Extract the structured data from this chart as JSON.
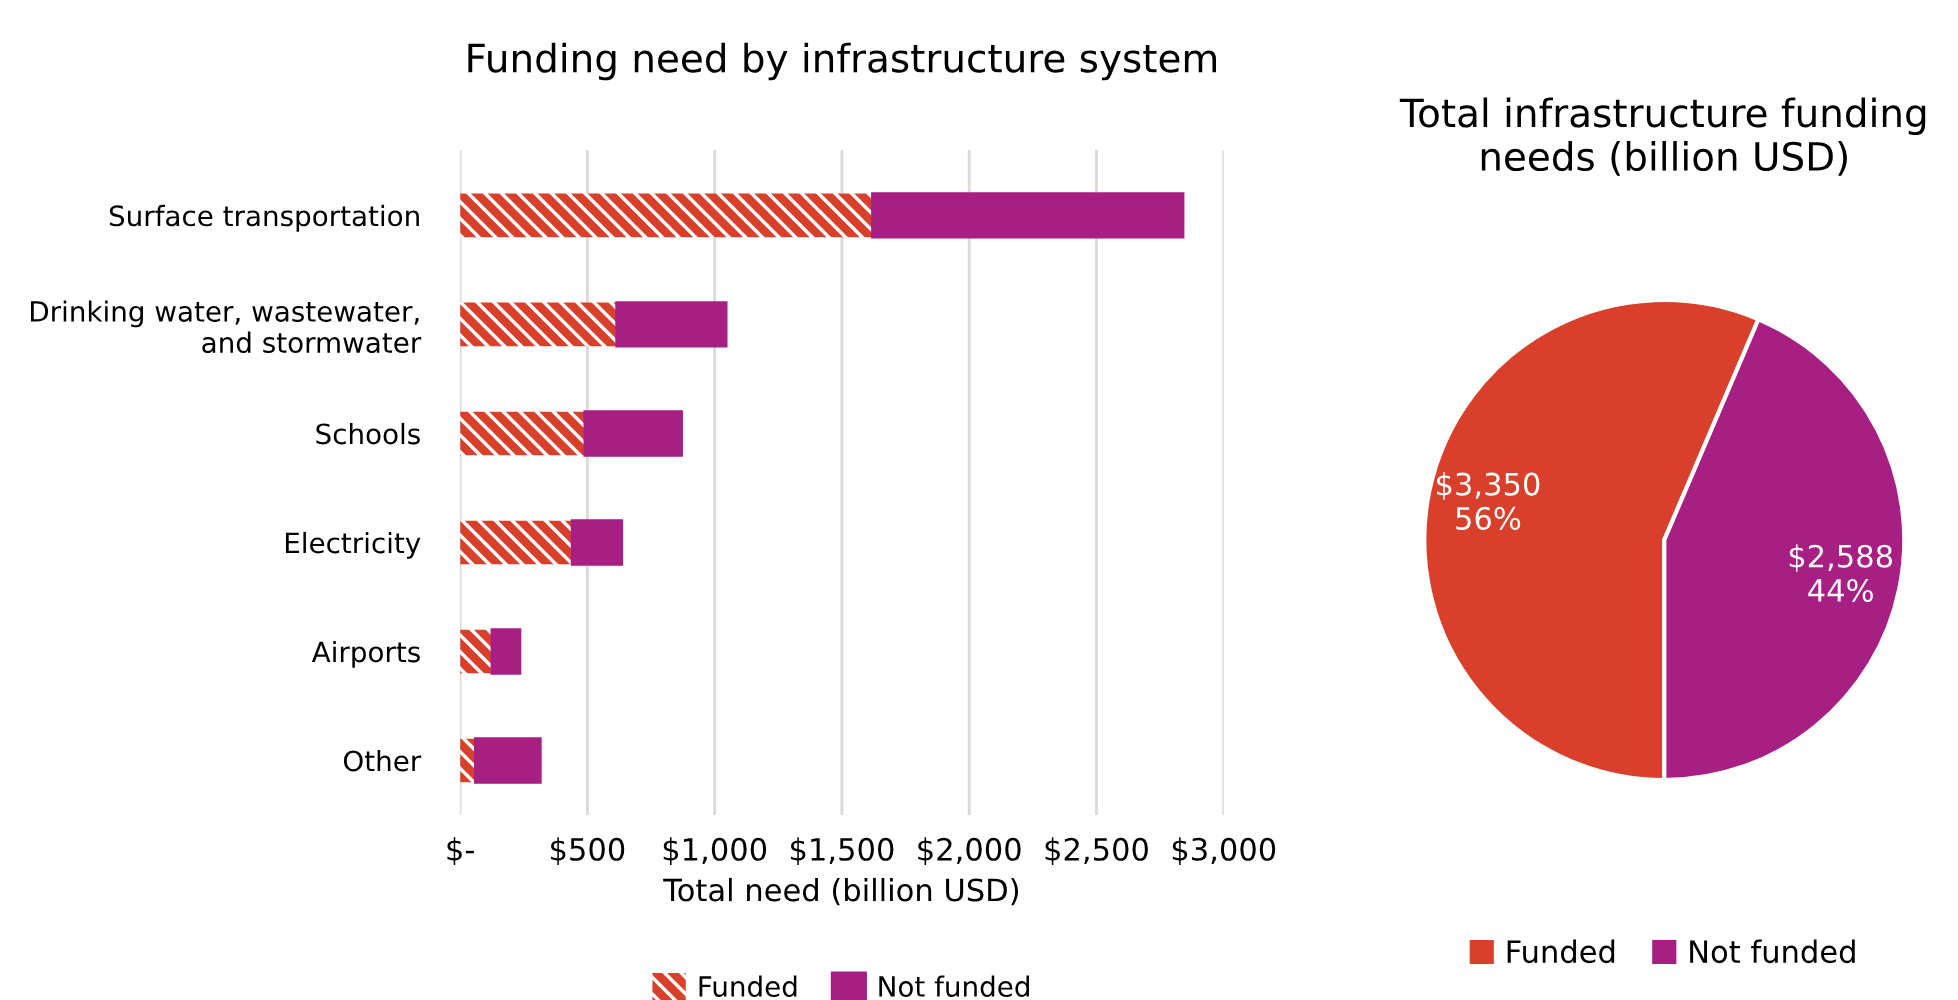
{
  "chart_data": [
    {
      "type": "bar",
      "orientation": "horizontal",
      "stacked": true,
      "title": "Funding need by infrastructure system",
      "xlabel": "Total need (billion USD)",
      "categories": [
        "Surface transportation",
        "Drinking water, wastewater,\nand stormwater",
        "Schools",
        "Electricity",
        "Airports",
        "Other"
      ],
      "series": [
        {
          "name": "Funded",
          "color": "#d9402b",
          "values": [
            1620,
            615,
            490,
            440,
            125,
            60
          ]
        },
        {
          "name": "Not funded",
          "color": "#a81f84",
          "values": [
            1220,
            430,
            380,
            195,
            110,
            255
          ]
        }
      ],
      "xlim": [
        0,
        3000
      ],
      "xticks": [
        {
          "value": 0,
          "label": "$-"
        },
        {
          "value": 500,
          "label": "$500"
        },
        {
          "value": 1000,
          "label": "$1,000"
        },
        {
          "value": 1500,
          "label": "$1,500"
        },
        {
          "value": 2000,
          "label": "$2,000"
        },
        {
          "value": 2500,
          "label": "$2,500"
        },
        {
          "value": 3000,
          "label": "$3,000"
        }
      ],
      "grid": "x",
      "legend": "bottom"
    },
    {
      "type": "pie",
      "title": "Total infrastructure funding\nneeds (billion USD)",
      "categories": [
        "Funded",
        "Not funded"
      ],
      "values": [
        3350,
        2588
      ],
      "colors": [
        "#d9402b",
        "#a81f84"
      ],
      "value_labels": [
        "$3,350\n56%",
        "$2,588\n44%"
      ],
      "legend": "bottom"
    }
  ]
}
